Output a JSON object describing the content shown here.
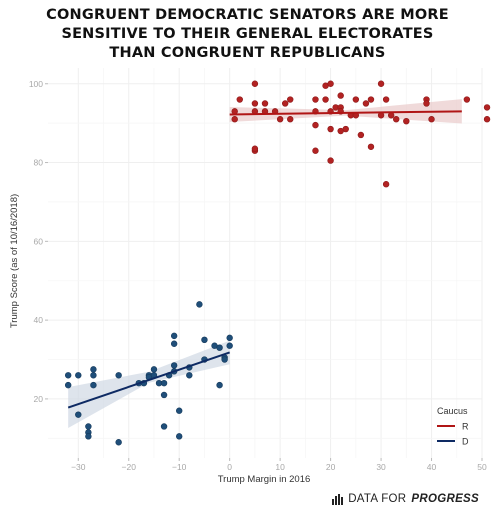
{
  "title_lines": [
    "CONGRUENT DEMOCRATIC SENATORS ARE MORE",
    "SENSITIVE TO THEIR GENERAL ELECTORATES",
    "THAN CONGRUENT REPUBLICANS"
  ],
  "footer": {
    "prefix": "DATA FOR ",
    "emphasis": "PROGRESS",
    "icon": "bar-chart-logo-icon"
  },
  "chart_data": {
    "type": "scatter",
    "xlabel": "Trump Margin in 2016",
    "ylabel": "Trump Score (as of 10/16/2018)",
    "xlim": [
      -36,
      50
    ],
    "ylim": [
      5,
      104
    ],
    "xticks": [
      -30,
      -20,
      -10,
      0,
      10,
      20,
      30,
      40,
      50
    ],
    "yticks": [
      20,
      40,
      60,
      80,
      100
    ],
    "grid": true,
    "legend": {
      "title": "Caucus",
      "position": "bottom-right",
      "entries": [
        "R",
        "D"
      ]
    },
    "colors": {
      "R": "#b22222",
      "D": "#1f4e79",
      "R_line": "#b01515",
      "D_line": "#0e2a63"
    },
    "series": [
      {
        "name": "R",
        "fit": {
          "x": [
            0,
            46
          ],
          "y": [
            92.2,
            93.0
          ],
          "band": [
            [
              0,
              90.3,
              94.1
            ],
            [
              23,
              91.9,
              93.3
            ],
            [
              46,
              89.9,
              96.1
            ]
          ]
        },
        "points": [
          [
            1,
            93
          ],
          [
            1,
            91
          ],
          [
            2,
            96
          ],
          [
            5,
            100
          ],
          [
            5,
            93
          ],
          [
            5,
            95
          ],
          [
            5,
            83
          ],
          [
            5,
            83.5
          ],
          [
            7,
            95
          ],
          [
            7,
            93
          ],
          [
            9,
            93
          ],
          [
            10,
            91
          ],
          [
            11,
            95
          ],
          [
            12,
            96
          ],
          [
            12,
            91
          ],
          [
            17,
            96
          ],
          [
            17,
            93
          ],
          [
            17,
            89.5
          ],
          [
            17,
            83
          ],
          [
            19,
            99.5
          ],
          [
            19,
            96
          ],
          [
            20,
            100
          ],
          [
            20,
            93
          ],
          [
            20,
            88.5
          ],
          [
            20,
            80.5
          ],
          [
            21,
            94
          ],
          [
            22,
            97
          ],
          [
            22,
            94
          ],
          [
            22,
            88
          ],
          [
            22,
            93
          ],
          [
            23,
            88.5
          ],
          [
            24,
            92
          ],
          [
            25,
            92
          ],
          [
            25,
            96
          ],
          [
            27,
            95
          ],
          [
            26,
            87
          ],
          [
            28,
            96
          ],
          [
            28,
            84
          ],
          [
            30,
            100
          ],
          [
            30,
            92
          ],
          [
            31,
            96
          ],
          [
            31,
            74.5
          ],
          [
            32,
            92
          ],
          [
            33,
            91
          ],
          [
            35,
            90.5
          ],
          [
            39,
            96
          ],
          [
            39,
            95
          ],
          [
            40,
            91
          ],
          [
            47,
            96
          ],
          [
            51,
            94
          ],
          [
            51,
            91
          ]
        ]
      },
      {
        "name": "D",
        "fit": {
          "x": [
            -32,
            0
          ],
          "y": [
            17.8,
            31.8
          ],
          "band": [
            [
              -32,
              12.6,
              23.0
            ],
            [
              -16,
              24.1,
              26.9
            ],
            [
              0,
              28.8,
              34.8
            ]
          ]
        },
        "points": [
          [
            -32,
            26
          ],
          [
            -32,
            23.5
          ],
          [
            -30,
            16
          ],
          [
            -30,
            26
          ],
          [
            -27,
            26
          ],
          [
            -27,
            23.5
          ],
          [
            -27,
            27.5
          ],
          [
            -28,
            13
          ],
          [
            -28,
            11.5
          ],
          [
            -28,
            10.5
          ],
          [
            -22,
            9
          ],
          [
            -22,
            26
          ],
          [
            -18,
            24
          ],
          [
            -17,
            24
          ],
          [
            -16,
            26
          ],
          [
            -16,
            25.5
          ],
          [
            -15,
            27.5
          ],
          [
            -15,
            26
          ],
          [
            -14,
            24
          ],
          [
            -13,
            21
          ],
          [
            -13,
            13
          ],
          [
            -13,
            24
          ],
          [
            -12,
            26
          ],
          [
            -11,
            36
          ],
          [
            -11,
            34
          ],
          [
            -11,
            28.5
          ],
          [
            -11,
            27
          ],
          [
            -10,
            17
          ],
          [
            -10,
            10.5
          ],
          [
            -8,
            26
          ],
          [
            -8,
            28
          ],
          [
            -6,
            44
          ],
          [
            -5,
            30
          ],
          [
            -5,
            35
          ],
          [
            -3,
            33.5
          ],
          [
            -2,
            33
          ],
          [
            -1,
            30.5
          ],
          [
            -1,
            30
          ],
          [
            -2,
            23.5
          ],
          [
            0,
            33.5
          ],
          [
            0,
            35.5
          ]
        ]
      }
    ]
  }
}
